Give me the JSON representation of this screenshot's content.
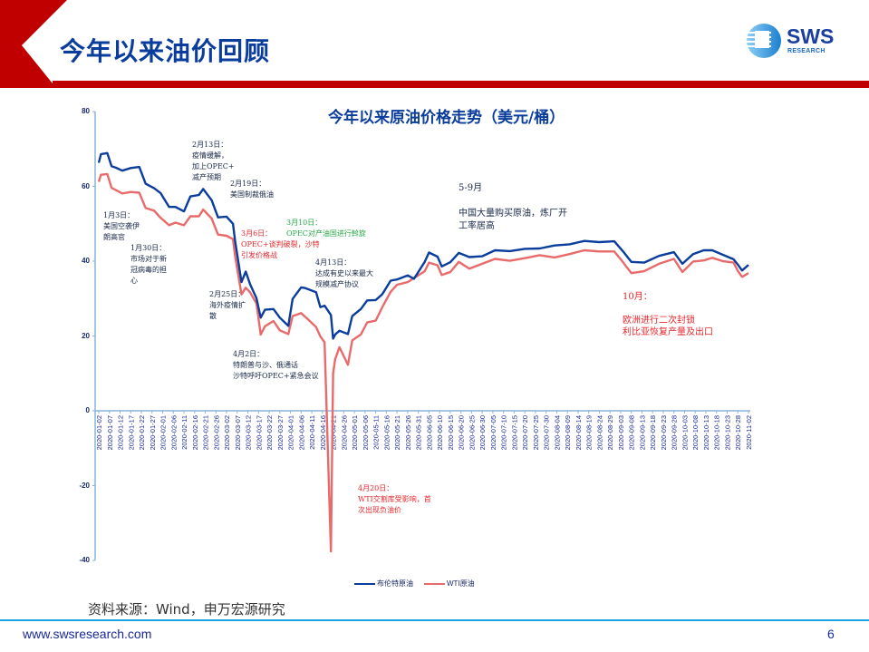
{
  "header": {
    "title": "今年以来油价回顾",
    "logo_text": "SWS",
    "logo_sub": "RESEARCH",
    "accent_red": "#c00000",
    "title_color": "#0a3d9c"
  },
  "chart_data": {
    "type": "line",
    "title": "今年以来原油价格走势（美元/桶）",
    "xlabel": "",
    "ylabel": "",
    "ylim": [
      -40,
      80
    ],
    "yticks": [
      80,
      60,
      40,
      20,
      0,
      -20,
      -40
    ],
    "grid": false,
    "legend_position": "bottom",
    "x_ticks": [
      "2020-01-02",
      "2020-01-07",
      "2020-01-12",
      "2020-01-17",
      "2020-01-22",
      "2020-01-27",
      "2020-02-01",
      "2020-02-06",
      "2020-02-11",
      "2020-02-16",
      "2020-02-21",
      "2020-02-26",
      "2020-03-02",
      "2020-03-07",
      "2020-03-12",
      "2020-03-17",
      "2020-03-22",
      "2020-03-27",
      "2020-04-01",
      "2020-04-06",
      "2020-04-11",
      "2020-04-16",
      "2020-04-21",
      "2020-04-26",
      "2020-05-01",
      "2020-05-06",
      "2020-05-11",
      "2020-05-16",
      "2020-05-21",
      "2020-05-26",
      "2020-05-31",
      "2020-06-05",
      "2020-06-10",
      "2020-06-15",
      "2020-06-20",
      "2020-06-25",
      "2020-06-30",
      "2020-07-05",
      "2020-07-10",
      "2020-07-15",
      "2020-07-20",
      "2020-07-25",
      "2020-07-30",
      "2020-08-04",
      "2020-08-09",
      "2020-08-14",
      "2020-08-19",
      "2020-08-24",
      "2020-08-29",
      "2020-09-03",
      "2020-09-08",
      "2020-09-13",
      "2020-09-18",
      "2020-09-23",
      "2020-09-28",
      "2020-10-03",
      "2020-10-08",
      "2020-10-13",
      "2020-10-18",
      "2020-10-23",
      "2020-10-28",
      "2020-11-02"
    ],
    "x": [
      "2020-01-02",
      "2020-01-03",
      "2020-01-06",
      "2020-01-08",
      "2020-01-10",
      "2020-01-13",
      "2020-01-17",
      "2020-01-21",
      "2020-01-24",
      "2020-01-28",
      "2020-01-31",
      "2020-02-04",
      "2020-02-07",
      "2020-02-11",
      "2020-02-14",
      "2020-02-18",
      "2020-02-20",
      "2020-02-24",
      "2020-02-27",
      "2020-03-02",
      "2020-03-05",
      "2020-03-06",
      "2020-03-09",
      "2020-03-11",
      "2020-03-13",
      "2020-03-16",
      "2020-03-18",
      "2020-03-20",
      "2020-03-24",
      "2020-03-27",
      "2020-03-31",
      "2020-04-02",
      "2020-04-06",
      "2020-04-08",
      "2020-04-13",
      "2020-04-15",
      "2020-04-17",
      "2020-04-20",
      "2020-04-21",
      "2020-04-22",
      "2020-04-24",
      "2020-04-28",
      "2020-04-30",
      "2020-05-04",
      "2020-05-07",
      "2020-05-11",
      "2020-05-14",
      "2020-05-18",
      "2020-05-21",
      "2020-05-26",
      "2020-05-29",
      "2020-06-03",
      "2020-06-05",
      "2020-06-09",
      "2020-06-11",
      "2020-06-15",
      "2020-06-19",
      "2020-06-24",
      "2020-06-30",
      "2020-07-06",
      "2020-07-13",
      "2020-07-20",
      "2020-07-27",
      "2020-08-03",
      "2020-08-10",
      "2020-08-17",
      "2020-08-24",
      "2020-08-31",
      "2020-09-04",
      "2020-09-08",
      "2020-09-14",
      "2020-09-21",
      "2020-09-28",
      "2020-10-02",
      "2020-10-07",
      "2020-10-12",
      "2020-10-16",
      "2020-10-21",
      "2020-10-26",
      "2020-10-28",
      "2020-10-30",
      "2020-11-02"
    ],
    "series": [
      {
        "name": "布伦特原油",
        "color": "#0a3d9c",
        "values": [
          66.3,
          68.6,
          68.9,
          65.4,
          65.0,
          64.2,
          64.9,
          65.2,
          60.7,
          59.5,
          58.2,
          54.5,
          54.5,
          53.3,
          57.3,
          57.7,
          59.3,
          56.3,
          51.7,
          51.9,
          49.99,
          45.3,
          34.4,
          37.2,
          33.9,
          30.1,
          24.9,
          27.0,
          27.2,
          24.9,
          22.7,
          29.9,
          33.0,
          32.8,
          31.7,
          27.7,
          28.1,
          25.6,
          19.3,
          20.4,
          21.4,
          20.5,
          25.3,
          27.2,
          29.5,
          29.6,
          31.1,
          34.8,
          35.1,
          36.2,
          35.3,
          39.8,
          42.3,
          41.2,
          38.6,
          39.7,
          42.2,
          41.1,
          41.3,
          42.9,
          42.7,
          43.3,
          43.4,
          44.2,
          44.5,
          45.4,
          45.1,
          45.3,
          42.7,
          39.8,
          39.6,
          41.4,
          42.4,
          39.3,
          41.9,
          42.9,
          42.9,
          41.7,
          40.5,
          39.1,
          37.5,
          39.0
        ]
      },
      {
        "name": "WTI原油",
        "color": "#e86a6a",
        "values": [
          61.2,
          63.1,
          63.3,
          59.6,
          59.0,
          58.1,
          58.5,
          58.3,
          54.2,
          53.5,
          51.6,
          49.6,
          50.3,
          49.6,
          52.0,
          52.0,
          53.8,
          51.4,
          47.1,
          46.8,
          45.9,
          41.3,
          31.1,
          32.9,
          31.7,
          28.7,
          20.4,
          22.6,
          24.0,
          21.5,
          20.5,
          25.3,
          26.1,
          25.1,
          22.4,
          19.9,
          18.3,
          -37.6,
          10.0,
          13.8,
          17.0,
          12.3,
          18.8,
          20.4,
          23.6,
          24.1,
          27.6,
          31.8,
          33.7,
          34.4,
          35.5,
          37.3,
          39.6,
          38.9,
          36.3,
          37.1,
          39.8,
          38.0,
          39.3,
          40.6,
          40.1,
          40.8,
          41.6,
          41.0,
          41.9,
          42.9,
          42.6,
          42.6,
          39.8,
          36.8,
          37.3,
          39.3,
          40.6,
          37.1,
          39.9,
          40.2,
          40.9,
          40.0,
          39.6,
          37.4,
          35.8,
          36.8
        ]
      }
    ],
    "annotations": [
      {
        "id": "jan3",
        "color": "dark",
        "lines": [
          "1月3日：",
          "美国空袭伊",
          "朗高官"
        ]
      },
      {
        "id": "jan30",
        "color": "dark",
        "lines": [
          "1月30日：",
          "市场对于新",
          "冠病毒的担",
          "心"
        ]
      },
      {
        "id": "feb13",
        "color": "dark",
        "lines": [
          "2月13日：",
          "疫情缓解，",
          "加上OPEC+",
          "减产预期"
        ]
      },
      {
        "id": "feb19",
        "color": "dark",
        "lines": [
          "2月19日：",
          "美国制裁俄油"
        ]
      },
      {
        "id": "mar6",
        "color": "red",
        "lines": [
          "3月6日：",
          "OPEC+谈判破裂，沙特",
          "引发价格战"
        ]
      },
      {
        "id": "mar10",
        "color": "green",
        "lines": [
          "3月10日：",
          "OPEC对产油国进行斡旋"
        ]
      },
      {
        "id": "feb25",
        "color": "dark",
        "lines": [
          "2月25日：",
          "海外疫情扩",
          "散"
        ]
      },
      {
        "id": "apr2",
        "color": "dark",
        "lines": [
          "4月2日：",
          "特朗普与沙、俄通话",
          "沙特呼吁OPEC+紧急会议"
        ]
      },
      {
        "id": "apr13",
        "color": "dark",
        "lines": [
          "4月13日：",
          "达成有史以来最大",
          "规模减产协议"
        ]
      },
      {
        "id": "apr20",
        "color": "red",
        "lines": [
          "4月20日：",
          "WTI交割库受影响，首",
          "次出现负油价"
        ]
      },
      {
        "id": "may_sep",
        "color": "dark",
        "lines": [
          "5-9月",
          "",
          "中国大量购买原油，炼厂开",
          "工率居高"
        ]
      },
      {
        "id": "oct",
        "color": "red",
        "lines": [
          "10月：",
          "",
          "欧洲进行二次封锁",
          "利比亚恢复产量及出口"
        ]
      }
    ],
    "legend": [
      "布伦特原油",
      "WTI原油"
    ]
  },
  "footer": {
    "source": "资料来源：Wind，申万宏源研究",
    "website": "www.swsresearch.com",
    "page_number": "6"
  }
}
